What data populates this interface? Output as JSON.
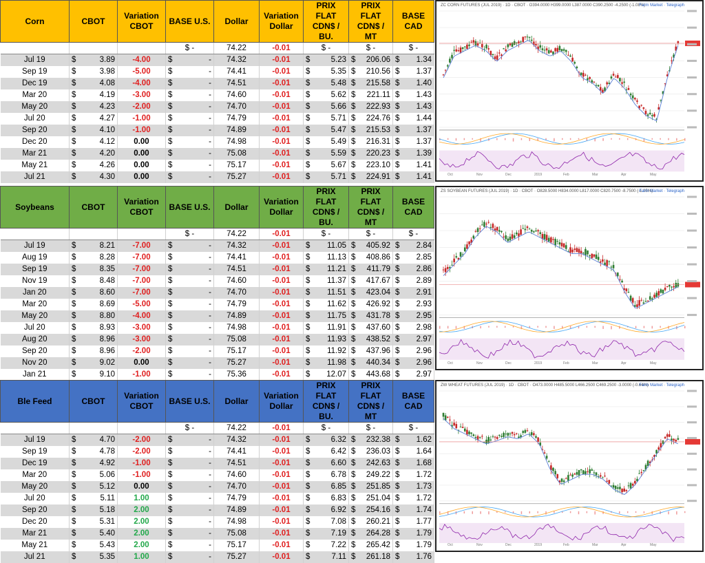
{
  "colors": {
    "corn_header": "#ffc000",
    "soybeans_header": "#70ad47",
    "ble_header": "#4472c4",
    "negative": "#e02020",
    "positive": "#22a84a",
    "row_alt": "#d9d9d9"
  },
  "tables": [
    {
      "name": "Corn",
      "headers": [
        "Corn",
        "CBOT",
        "Variation CBOT",
        "BASE U.S.",
        "Dollar",
        "Variation Dollar",
        "PRIX FLAT CDN$ / BU.",
        "PRIX FLAT CDN$ / MT",
        "BASE CAD"
      ],
      "base_row": {
        "base_us": "$        -",
        "dollar": "74.22",
        "var_dollar": "-0.01",
        "flat_bu": "$        -",
        "flat_mt": "$        -",
        "base_cad": "$        -"
      },
      "rows": [
        {
          "month": "Jul 19",
          "cbot": "3.89",
          "var": "-4.00",
          "dollar": "74.32",
          "vd": "-0.01",
          "bu": "5.23",
          "mt": "206.06",
          "cad": "1.34"
        },
        {
          "month": "Sep 19",
          "cbot": "3.98",
          "var": "-5.00",
          "dollar": "74.41",
          "vd": "-0.01",
          "bu": "5.35",
          "mt": "210.56",
          "cad": "1.37"
        },
        {
          "month": "Dec 19",
          "cbot": "4.08",
          "var": "-4.00",
          "dollar": "74.51",
          "vd": "-0.01",
          "bu": "5.48",
          "mt": "215.58",
          "cad": "1.40"
        },
        {
          "month": "Mar 20",
          "cbot": "4.19",
          "var": "-3.00",
          "dollar": "74.60",
          "vd": "-0.01",
          "bu": "5.62",
          "mt": "221.11",
          "cad": "1.43"
        },
        {
          "month": "May 20",
          "cbot": "4.23",
          "var": "-2.00",
          "dollar": "74.70",
          "vd": "-0.01",
          "bu": "5.66",
          "mt": "222.93",
          "cad": "1.43"
        },
        {
          "month": "Jul 20",
          "cbot": "4.27",
          "var": "-1.00",
          "dollar": "74.79",
          "vd": "-0.01",
          "bu": "5.71",
          "mt": "224.76",
          "cad": "1.44"
        },
        {
          "month": "Sep 20",
          "cbot": "4.10",
          "var": "-1.00",
          "dollar": "74.89",
          "vd": "-0.01",
          "bu": "5.47",
          "mt": "215.53",
          "cad": "1.37"
        },
        {
          "month": "Dec 20",
          "cbot": "4.12",
          "var": "0.00",
          "dollar": "74.98",
          "vd": "-0.01",
          "bu": "5.49",
          "mt": "216.31",
          "cad": "1.37"
        },
        {
          "month": "Mar 21",
          "cbot": "4.20",
          "var": "0.00",
          "dollar": "75.08",
          "vd": "-0.01",
          "bu": "5.59",
          "mt": "220.23",
          "cad": "1.39"
        },
        {
          "month": "May 21",
          "cbot": "4.26",
          "var": "0.00",
          "dollar": "75.17",
          "vd": "-0.01",
          "bu": "5.67",
          "mt": "223.10",
          "cad": "1.41"
        },
        {
          "month": "Jul 21",
          "cbot": "4.30",
          "var": "0.00",
          "dollar": "75.27",
          "vd": "-0.01",
          "bu": "5.71",
          "mt": "224.91",
          "cad": "1.41"
        }
      ],
      "chart_title": "ZC CORN FUTURES (JUL 2019) · 1D · CBOT · O394.0000 H399.0000 L387.0000 C390.2500 -4.2500 (-1.08%)"
    },
    {
      "name": "Soybeans",
      "headers": [
        "Soybeans",
        "CBOT",
        "Variation CBOT",
        "BASE U.S.",
        "Dollar",
        "Variation Dollar",
        "PRIX FLAT CDN$ / BU.",
        "PRIX FLAT CDN$ / MT",
        "BASE CAD"
      ],
      "base_row": {
        "base_us": "$        -",
        "dollar": "74.22",
        "var_dollar": "-0.01",
        "flat_bu": "$        -",
        "flat_mt": "$        -",
        "base_cad": "$        -"
      },
      "rows": [
        {
          "month": "Jul 19",
          "cbot": "8.21",
          "var": "-7.00",
          "dollar": "74.32",
          "vd": "-0.01",
          "bu": "11.05",
          "mt": "405.92",
          "cad": "2.84"
        },
        {
          "month": "Aug 19",
          "cbot": "8.28",
          "var": "-7.00",
          "dollar": "74.41",
          "vd": "-0.01",
          "bu": "11.13",
          "mt": "408.86",
          "cad": "2.85"
        },
        {
          "month": "Sep 19",
          "cbot": "8.35",
          "var": "-7.00",
          "dollar": "74.51",
          "vd": "-0.01",
          "bu": "11.21",
          "mt": "411.79",
          "cad": "2.86"
        },
        {
          "month": "Nov 19",
          "cbot": "8.48",
          "var": "-7.00",
          "dollar": "74.60",
          "vd": "-0.01",
          "bu": "11.37",
          "mt": "417.67",
          "cad": "2.89"
        },
        {
          "month": "Jan 20",
          "cbot": "8.60",
          "var": "-7.00",
          "dollar": "74.70",
          "vd": "-0.01",
          "bu": "11.51",
          "mt": "423.04",
          "cad": "2.91"
        },
        {
          "month": "Mar 20",
          "cbot": "8.69",
          "var": "-5.00",
          "dollar": "74.79",
          "vd": "-0.01",
          "bu": "11.62",
          "mt": "426.92",
          "cad": "2.93"
        },
        {
          "month": "May 20",
          "cbot": "8.80",
          "var": "-4.00",
          "dollar": "74.89",
          "vd": "-0.01",
          "bu": "11.75",
          "mt": "431.78",
          "cad": "2.95"
        },
        {
          "month": "Jul 20",
          "cbot": "8.93",
          "var": "-3.00",
          "dollar": "74.98",
          "vd": "-0.01",
          "bu": "11.91",
          "mt": "437.60",
          "cad": "2.98"
        },
        {
          "month": "Aug 20",
          "cbot": "8.96",
          "var": "-3.00",
          "dollar": "75.08",
          "vd": "-0.01",
          "bu": "11.93",
          "mt": "438.52",
          "cad": "2.97"
        },
        {
          "month": "Sep 20",
          "cbot": "8.96",
          "var": "-2.00",
          "dollar": "75.17",
          "vd": "-0.01",
          "bu": "11.92",
          "mt": "437.96",
          "cad": "2.96"
        },
        {
          "month": "Nov 20",
          "cbot": "9.02",
          "var": "0.00",
          "dollar": "75.27",
          "vd": "-0.01",
          "bu": "11.98",
          "mt": "440.34",
          "cad": "2.96"
        },
        {
          "month": "Jan 21",
          "cbot": "9.10",
          "var": "-1.00",
          "dollar": "75.36",
          "vd": "-0.01",
          "bu": "12.07",
          "mt": "443.68",
          "cad": "2.97"
        }
      ],
      "chart_title": "ZS SOYBEAN FUTURES (JUL 2019) · 1D · CBOT · O828.5000 H834.0000 L817.0000 C820.7500 -8.7500 (-1.05%)"
    },
    {
      "name": "Ble Feed",
      "headers": [
        "Ble Feed",
        "CBOT",
        "Variation CBOT",
        "BASE U.S.",
        "Dollar",
        "Variation Dollar",
        "PRIX FLAT CDN$ / BU.",
        "PRIX FLAT CDN$ / MT",
        "BASE CAD"
      ],
      "base_row": {
        "base_us": "$        -",
        "dollar": "74.22",
        "var_dollar": "-0.01",
        "flat_bu": "$        -",
        "flat_mt": "$        -",
        "base_cad": "$        -"
      },
      "rows": [
        {
          "month": "Jul 19",
          "cbot": "4.70",
          "var": "-2.00",
          "dollar": "74.32",
          "vd": "-0.01",
          "bu": "6.32",
          "mt": "232.38",
          "cad": "1.62"
        },
        {
          "month": "Sep 19",
          "cbot": "4.78",
          "var": "-2.00",
          "dollar": "74.41",
          "vd": "-0.01",
          "bu": "6.42",
          "mt": "236.03",
          "cad": "1.64"
        },
        {
          "month": "Dec 19",
          "cbot": "4.92",
          "var": "-1.00",
          "dollar": "74.51",
          "vd": "-0.01",
          "bu": "6.60",
          "mt": "242.63",
          "cad": "1.68"
        },
        {
          "month": "Mar 20",
          "cbot": "5.06",
          "var": "-1.00",
          "dollar": "74.60",
          "vd": "-0.01",
          "bu": "6.78",
          "mt": "249.22",
          "cad": "1.72"
        },
        {
          "month": "May 20",
          "cbot": "5.12",
          "var": "0.00",
          "dollar": "74.70",
          "vd": "-0.01",
          "bu": "6.85",
          "mt": "251.85",
          "cad": "1.73"
        },
        {
          "month": "Jul 20",
          "cbot": "5.11",
          "var": "1.00",
          "dollar": "74.79",
          "vd": "-0.01",
          "bu": "6.83",
          "mt": "251.04",
          "cad": "1.72"
        },
        {
          "month": "Sep 20",
          "cbot": "5.18",
          "var": "2.00",
          "dollar": "74.89",
          "vd": "-0.01",
          "bu": "6.92",
          "mt": "254.16",
          "cad": "1.74"
        },
        {
          "month": "Dec 20",
          "cbot": "5.31",
          "var": "2.00",
          "dollar": "74.98",
          "vd": "-0.01",
          "bu": "7.08",
          "mt": "260.21",
          "cad": "1.77"
        },
        {
          "month": "Mar 21",
          "cbot": "5.40",
          "var": "2.00",
          "dollar": "75.08",
          "vd": "-0.01",
          "bu": "7.19",
          "mt": "264.28",
          "cad": "1.79"
        },
        {
          "month": "May 21",
          "cbot": "5.43",
          "var": "2.00",
          "dollar": "75.17",
          "vd": "-0.01",
          "bu": "7.22",
          "mt": "265.42",
          "cad": "1.79"
        },
        {
          "month": "Jul 21",
          "cbot": "5.35",
          "var": "1.00",
          "dollar": "75.27",
          "vd": "-0.01",
          "bu": "7.11",
          "mt": "261.18",
          "cad": "1.76"
        }
      ],
      "chart_title": "ZW WHEAT FUTURES (JUL 2019) · 1D · CBOT · O473.0000 H485.5000 L466.2500 C469.2500 -3.0000 (-0.64%)"
    }
  ],
  "currency_symbol": "$",
  "chart_brand": "Farm Market · Telegraph",
  "chart_months": [
    "Oct",
    "Nov",
    "Dec",
    "2019",
    "Feb",
    "Mar",
    "Apr",
    "May"
  ]
}
